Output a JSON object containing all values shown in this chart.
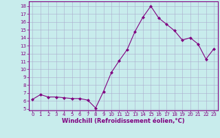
{
  "x": [
    0,
    1,
    2,
    3,
    4,
    5,
    6,
    7,
    8,
    9,
    10,
    11,
    12,
    13,
    14,
    15,
    16,
    17,
    18,
    19,
    20,
    21,
    22,
    23
  ],
  "y": [
    6.2,
    6.8,
    6.5,
    6.5,
    6.4,
    6.3,
    6.3,
    6.1,
    5.1,
    7.2,
    9.6,
    11.1,
    12.5,
    14.8,
    16.6,
    18.0,
    16.5,
    15.7,
    14.9,
    13.7,
    14.0,
    13.2,
    11.3,
    12.6
  ],
  "line_color": "#800080",
  "marker": "D",
  "marker_size": 2.0,
  "bg_color": "#c8ecec",
  "grid_color": "#aaaacc",
  "xlabel": "Windchill (Refroidissement éolien,°C)",
  "xlabel_color": "#800080",
  "ylabel_ticks": [
    5,
    6,
    7,
    8,
    9,
    10,
    11,
    12,
    13,
    14,
    15,
    16,
    17,
    18
  ],
  "xlim": [
    -0.5,
    23.5
  ],
  "ylim": [
    4.8,
    18.6
  ],
  "xticks": [
    0,
    1,
    2,
    3,
    4,
    5,
    6,
    7,
    8,
    9,
    10,
    11,
    12,
    13,
    14,
    15,
    16,
    17,
    18,
    19,
    20,
    21,
    22,
    23
  ],
  "tick_color": "#800080",
  "tick_fontsize": 5.0,
  "xlabel_fontsize": 6.0,
  "spine_color": "#800080",
  "linewidth": 0.8
}
